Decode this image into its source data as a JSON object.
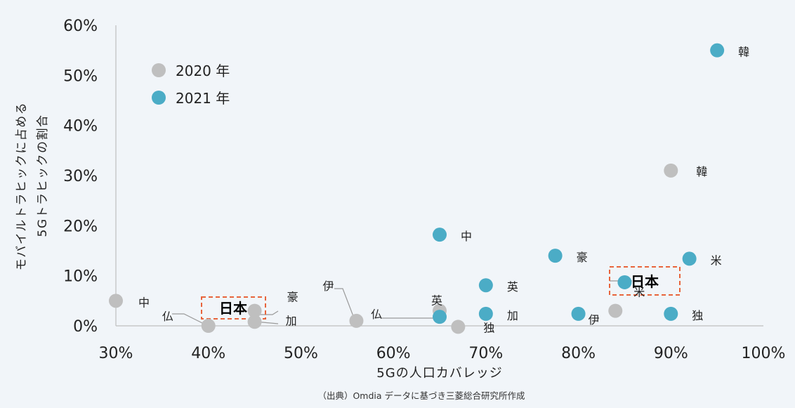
{
  "chart_data": {
    "type": "scatter",
    "xlabel": "5Gの人口カバレッジ",
    "ylabel_line1": "モバイルトラヒックに占める",
    "ylabel_line2": "5Gトラヒックの割合",
    "source": "（出典）Omdia データに基づき三菱総合研究所作成",
    "xlim": [
      0.3,
      1.0
    ],
    "ylim": [
      0.0,
      0.6
    ],
    "x_ticks": [
      {
        "value": 0.3,
        "label": "30%"
      },
      {
        "value": 0.4,
        "label": "40%"
      },
      {
        "value": 0.5,
        "label": "50%"
      },
      {
        "value": 0.6,
        "label": "60%"
      },
      {
        "value": 0.7,
        "label": "70%"
      },
      {
        "value": 0.8,
        "label": "80%"
      },
      {
        "value": 0.9,
        "label": "90%"
      },
      {
        "value": 1.0,
        "label": "100%"
      }
    ],
    "y_ticks": [
      {
        "value": 0.0,
        "label": "0%"
      },
      {
        "value": 0.1,
        "label": "10%"
      },
      {
        "value": 0.2,
        "label": "20%"
      },
      {
        "value": 0.3,
        "label": "30%"
      },
      {
        "value": 0.4,
        "label": "40%"
      },
      {
        "value": 0.5,
        "label": "50%"
      },
      {
        "value": 0.6,
        "label": "60%"
      }
    ],
    "grid": false,
    "legend_position": "top-left",
    "series": [
      {
        "name": "2020 年",
        "color": "#bfbfbf",
        "points": [
          {
            "x": 0.3,
            "y": 0.05,
            "label": "中"
          },
          {
            "x": 0.4,
            "y": 0.0,
            "label": "仏"
          },
          {
            "x": 0.45,
            "y": 0.03,
            "label": "豪"
          },
          {
            "x": 0.45,
            "y": 0.008,
            "label": "加"
          },
          {
            "x": 0.56,
            "y": 0.01,
            "label": "伊"
          },
          {
            "x": 0.65,
            "y": 0.03,
            "label": "英"
          },
          {
            "x": 0.67,
            "y": -0.002,
            "label": "独"
          },
          {
            "x": 0.84,
            "y": 0.03,
            "label": "米"
          },
          {
            "x": 0.9,
            "y": 0.31,
            "label": "韓"
          }
        ]
      },
      {
        "name": "2021 年",
        "color": "#4bacc6",
        "points": [
          {
            "x": 0.65,
            "y": 0.182,
            "label": "中"
          },
          {
            "x": 0.65,
            "y": 0.018,
            "label": "仏"
          },
          {
            "x": 0.7,
            "y": 0.081,
            "label": "英"
          },
          {
            "x": 0.7,
            "y": 0.024,
            "label": "加"
          },
          {
            "x": 0.775,
            "y": 0.14,
            "label": "豪"
          },
          {
            "x": 0.8,
            "y": 0.024,
            "label": "伊"
          },
          {
            "x": 0.85,
            "y": 0.087,
            "label": "日本"
          },
          {
            "x": 0.9,
            "y": 0.024,
            "label": "独"
          },
          {
            "x": 0.92,
            "y": 0.134,
            "label": "米"
          },
          {
            "x": 0.95,
            "y": 0.55,
            "label": "韓"
          }
        ]
      }
    ],
    "highlight_label": "日本"
  }
}
